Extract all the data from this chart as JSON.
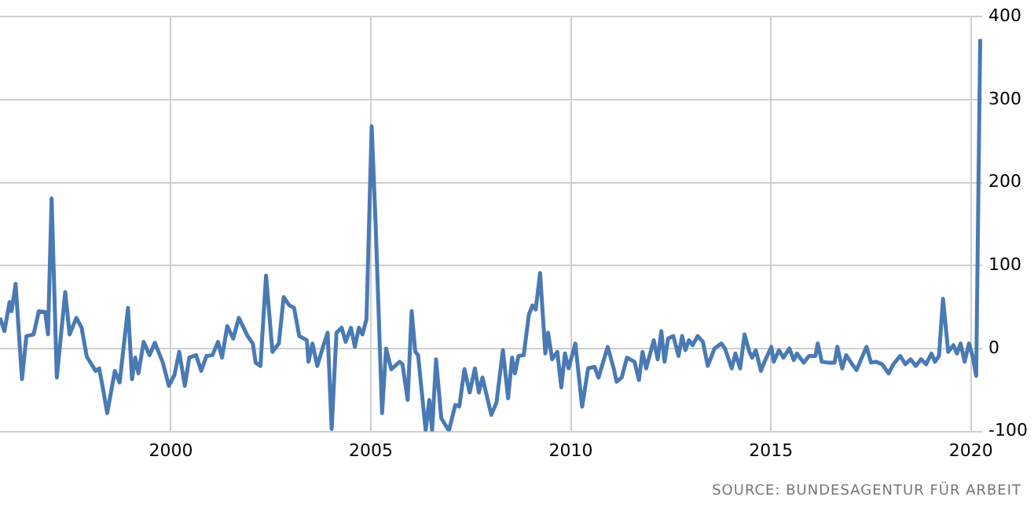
{
  "chart_data": {
    "type": "line",
    "x": [
      1995.73,
      1995.84,
      1995.97,
      1996.02,
      1996.12,
      1996.28,
      1996.39,
      1996.57,
      1996.7,
      1996.86,
      1996.93,
      1997.02,
      1997.15,
      1997.36,
      1997.47,
      1997.64,
      1997.77,
      1997.9,
      1998.12,
      1998.21,
      1998.31,
      1998.41,
      1998.6,
      1998.72,
      1998.93,
      1999.03,
      1999.11,
      1999.19,
      1999.32,
      1999.47,
      1999.6,
      1999.8,
      1999.95,
      2000.09,
      2000.21,
      2000.35,
      2000.46,
      2000.63,
      2000.76,
      2000.89,
      2001.04,
      2001.18,
      2001.28,
      2001.41,
      2001.56,
      2001.7,
      2001.92,
      2002.05,
      2002.12,
      2002.24,
      2002.38,
      2002.54,
      2002.7,
      2002.82,
      2002.96,
      2003.08,
      2003.21,
      2003.4,
      2003.44,
      2003.54,
      2003.66,
      2003.83,
      2003.92,
      2004.02,
      2004.14,
      2004.27,
      2004.37,
      2004.5,
      2004.6,
      2004.7,
      2004.79,
      2004.89,
      2005.02,
      2005.12,
      2005.28,
      2005.38,
      2005.51,
      2005.72,
      2005.79,
      2005.92,
      2006.02,
      2006.11,
      2006.18,
      2006.37,
      2006.46,
      2006.53,
      2006.63,
      2006.76,
      2006.95,
      2007.11,
      2007.21,
      2007.34,
      2007.47,
      2007.6,
      2007.7,
      2007.79,
      2008.01,
      2008.14,
      2008.3,
      2008.43,
      2008.53,
      2008.6,
      2008.69,
      2008.82,
      2008.95,
      2009.04,
      2009.12,
      2009.23,
      2009.36,
      2009.43,
      2009.53,
      2009.66,
      2009.76,
      2009.85,
      2009.94,
      2010.11,
      2010.28,
      2010.43,
      2010.59,
      2010.69,
      2010.92,
      2011.08,
      2011.14,
      2011.27,
      2011.4,
      2011.59,
      2011.7,
      2011.79,
      2011.88,
      2012.07,
      2012.17,
      2012.26,
      2012.34,
      2012.43,
      2012.56,
      2012.69,
      2012.78,
      2012.86,
      2012.95,
      2013.04,
      2013.17,
      2013.3,
      2013.42,
      2013.59,
      2013.76,
      2013.85,
      2014.02,
      2014.11,
      2014.23,
      2014.34,
      2014.46,
      2014.53,
      2014.62,
      2014.75,
      2014.84,
      2015.01,
      2015.07,
      2015.2,
      2015.31,
      2015.46,
      2015.57,
      2015.65,
      2015.82,
      2015.95,
      2016.11,
      2016.17,
      2016.27,
      2016.43,
      2016.59,
      2016.66,
      2016.78,
      2016.88,
      2017.03,
      2017.14,
      2017.27,
      2017.39,
      2017.5,
      2017.63,
      2017.78,
      2017.94,
      2018.06,
      2018.23,
      2018.36,
      2018.49,
      2018.62,
      2018.75,
      2018.88,
      2019.01,
      2019.1,
      2019.2,
      2019.3,
      2019.43,
      2019.56,
      2019.65,
      2019.74,
      2019.84,
      2019.95,
      2020.04,
      2020.13,
      2020.23
    ],
    "values": [
      37,
      21,
      56,
      45,
      78,
      -37,
      15,
      17,
      45,
      44,
      17,
      181,
      -35,
      68,
      17,
      37,
      25,
      -10,
      -27,
      -24,
      -50,
      -78,
      -27,
      -41,
      49,
      -37,
      -11,
      -30,
      8,
      -8,
      7,
      -17,
      -45,
      -32,
      -4,
      -45,
      -11,
      -8,
      -27,
      -9,
      -8,
      8,
      -11,
      27,
      12,
      37,
      15,
      6,
      -17,
      -21,
      88,
      -4,
      6,
      62,
      52,
      49,
      15,
      10,
      -16,
      6,
      -21,
      6,
      19,
      -97,
      19,
      25,
      8,
      25,
      2,
      25,
      17,
      35,
      268,
      148,
      -78,
      0,
      -25,
      -16,
      -19,
      -62,
      45,
      -4,
      -8,
      -99,
      -62,
      -99,
      -13,
      -84,
      -99,
      -68,
      -70,
      -25,
      -53,
      -24,
      -53,
      -35,
      -80,
      -65,
      -2,
      -60,
      -11,
      -30,
      -9,
      -8,
      41,
      52,
      47,
      91,
      -6,
      19,
      -13,
      -4,
      -47,
      -6,
      -24,
      6,
      -70,
      -24,
      -22,
      -35,
      2,
      -26,
      -40,
      -35,
      -11,
      -16,
      -38,
      -4,
      -24,
      10,
      -13,
      21,
      -16,
      12,
      15,
      -9,
      15,
      -2,
      10,
      4,
      15,
      8,
      -21,
      0,
      6,
      0,
      -24,
      -6,
      -24,
      17,
      -4,
      -11,
      -2,
      -27,
      -16,
      2,
      -16,
      -2,
      -11,
      0,
      -14,
      -6,
      -17,
      -9,
      -9,
      6,
      -16,
      -17,
      -17,
      2,
      -24,
      -8,
      -19,
      -26,
      -11,
      2,
      -17,
      -16,
      -19,
      -30,
      -19,
      -9,
      -19,
      -13,
      -21,
      -13,
      -19,
      -6,
      -16,
      -9,
      60,
      -4,
      4,
      -6,
      6,
      -16,
      6,
      -9,
      -33,
      373
    ],
    "color": "#4a7ab4",
    "xlim": [
      1995.73,
      2020.28
    ],
    "xticks": [
      2000,
      2005,
      2010,
      2015,
      2020
    ],
    "ylim": [
      -100,
      400
    ],
    "yticks": [
      -100,
      0,
      100,
      200,
      300,
      400
    ],
    "grid": true,
    "legend": false,
    "marker": "none",
    "line_style": "solid",
    "annotations": [
      "SOURCE: BUNDESAGENTUR FÜR ARBEIT"
    ]
  }
}
